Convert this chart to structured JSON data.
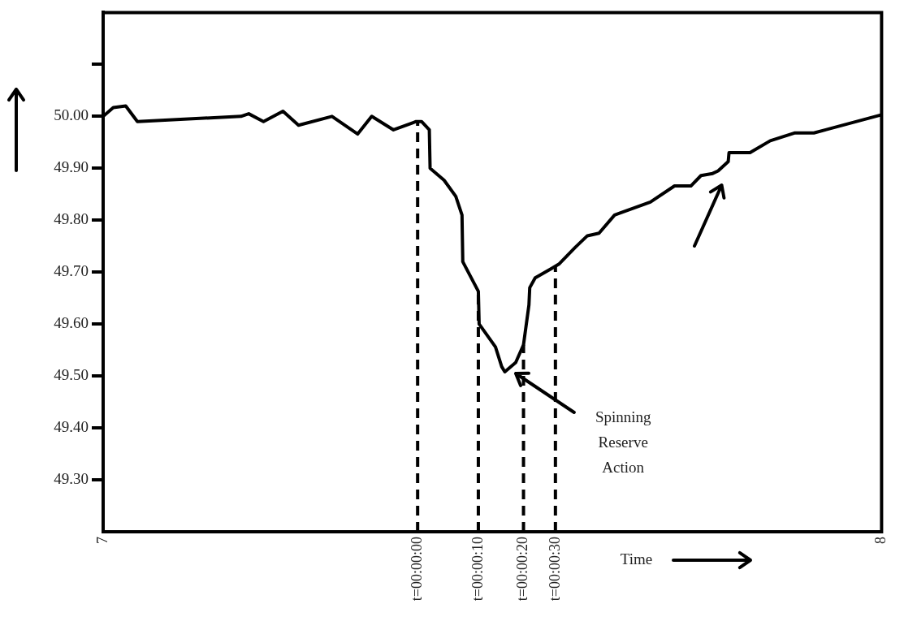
{
  "chart_data": {
    "type": "line",
    "xlabel": "Time",
    "x": [
      7.0,
      7.013,
      7.029,
      7.044,
      7.177,
      7.187,
      7.206,
      7.231,
      7.251,
      7.294,
      7.327,
      7.345,
      7.373,
      7.402,
      7.409,
      7.419,
      7.42,
      7.438,
      7.453,
      7.461,
      7.462,
      7.482,
      7.483,
      7.504,
      7.512,
      7.516,
      7.53,
      7.54,
      7.547,
      7.548,
      7.555,
      7.576,
      7.586,
      7.606,
      7.622,
      7.637,
      7.657,
      7.703,
      7.734,
      7.755,
      7.768,
      7.783,
      7.79,
      7.803,
      7.804,
      7.831,
      7.857,
      7.888,
      7.913,
      8.0
    ],
    "series": [
      {
        "color": "#000000",
        "values": [
          50.0,
          50.017,
          50.02,
          49.99,
          50.0,
          50.005,
          49.99,
          50.01,
          49.983,
          50.0,
          49.966,
          50.0,
          49.974,
          49.99,
          49.99,
          49.974,
          49.9,
          49.877,
          49.846,
          49.81,
          49.72,
          49.663,
          49.6,
          49.556,
          49.518,
          49.508,
          49.526,
          49.56,
          49.637,
          49.67,
          49.689,
          49.707,
          49.716,
          49.747,
          49.77,
          49.775,
          49.81,
          49.835,
          49.866,
          49.866,
          49.886,
          49.89,
          49.895,
          49.913,
          49.93,
          49.93,
          49.953,
          49.968,
          49.968,
          50.003
        ]
      }
    ],
    "xlim": [
      7,
      8
    ],
    "xticks": [
      7,
      {
        "value": 7.404,
        "label": "t=00:00:00"
      },
      {
        "value": 7.482,
        "label": "t=00:00:10"
      },
      {
        "value": 7.54,
        "label": "t=00:00:20"
      },
      {
        "value": 7.581,
        "label": "t=00:00:30"
      },
      8
    ],
    "ylim": [
      49.2,
      50.2
    ],
    "yticks": [
      {
        "value": 49.3,
        "label": "49.30"
      },
      {
        "value": 49.4,
        "label": "49.40"
      },
      {
        "value": 49.5,
        "label": "49.50"
      },
      {
        "value": 49.6,
        "label": "49.60"
      },
      {
        "value": 49.7,
        "label": "49.70"
      },
      {
        "value": 49.8,
        "label": "49.80"
      },
      {
        "value": 49.9,
        "label": "49.90"
      },
      {
        "value": 50.0,
        "label": "50.00"
      },
      {
        "value": 50.1,
        "label": null
      }
    ],
    "ref_lines": [
      {
        "axis": "x",
        "value": 7.404,
        "line_style": "dashed"
      },
      {
        "axis": "x",
        "value": 7.482,
        "line_style": "dashed"
      },
      {
        "axis": "x",
        "value": 7.54,
        "line_style": "dashed"
      },
      {
        "axis": "x",
        "value": 7.581,
        "line_style": "dashed"
      }
    ],
    "annotations": [
      "Spinning Reserve Action"
    ],
    "marker": "none",
    "line_style": "solid",
    "legend": false
  }
}
